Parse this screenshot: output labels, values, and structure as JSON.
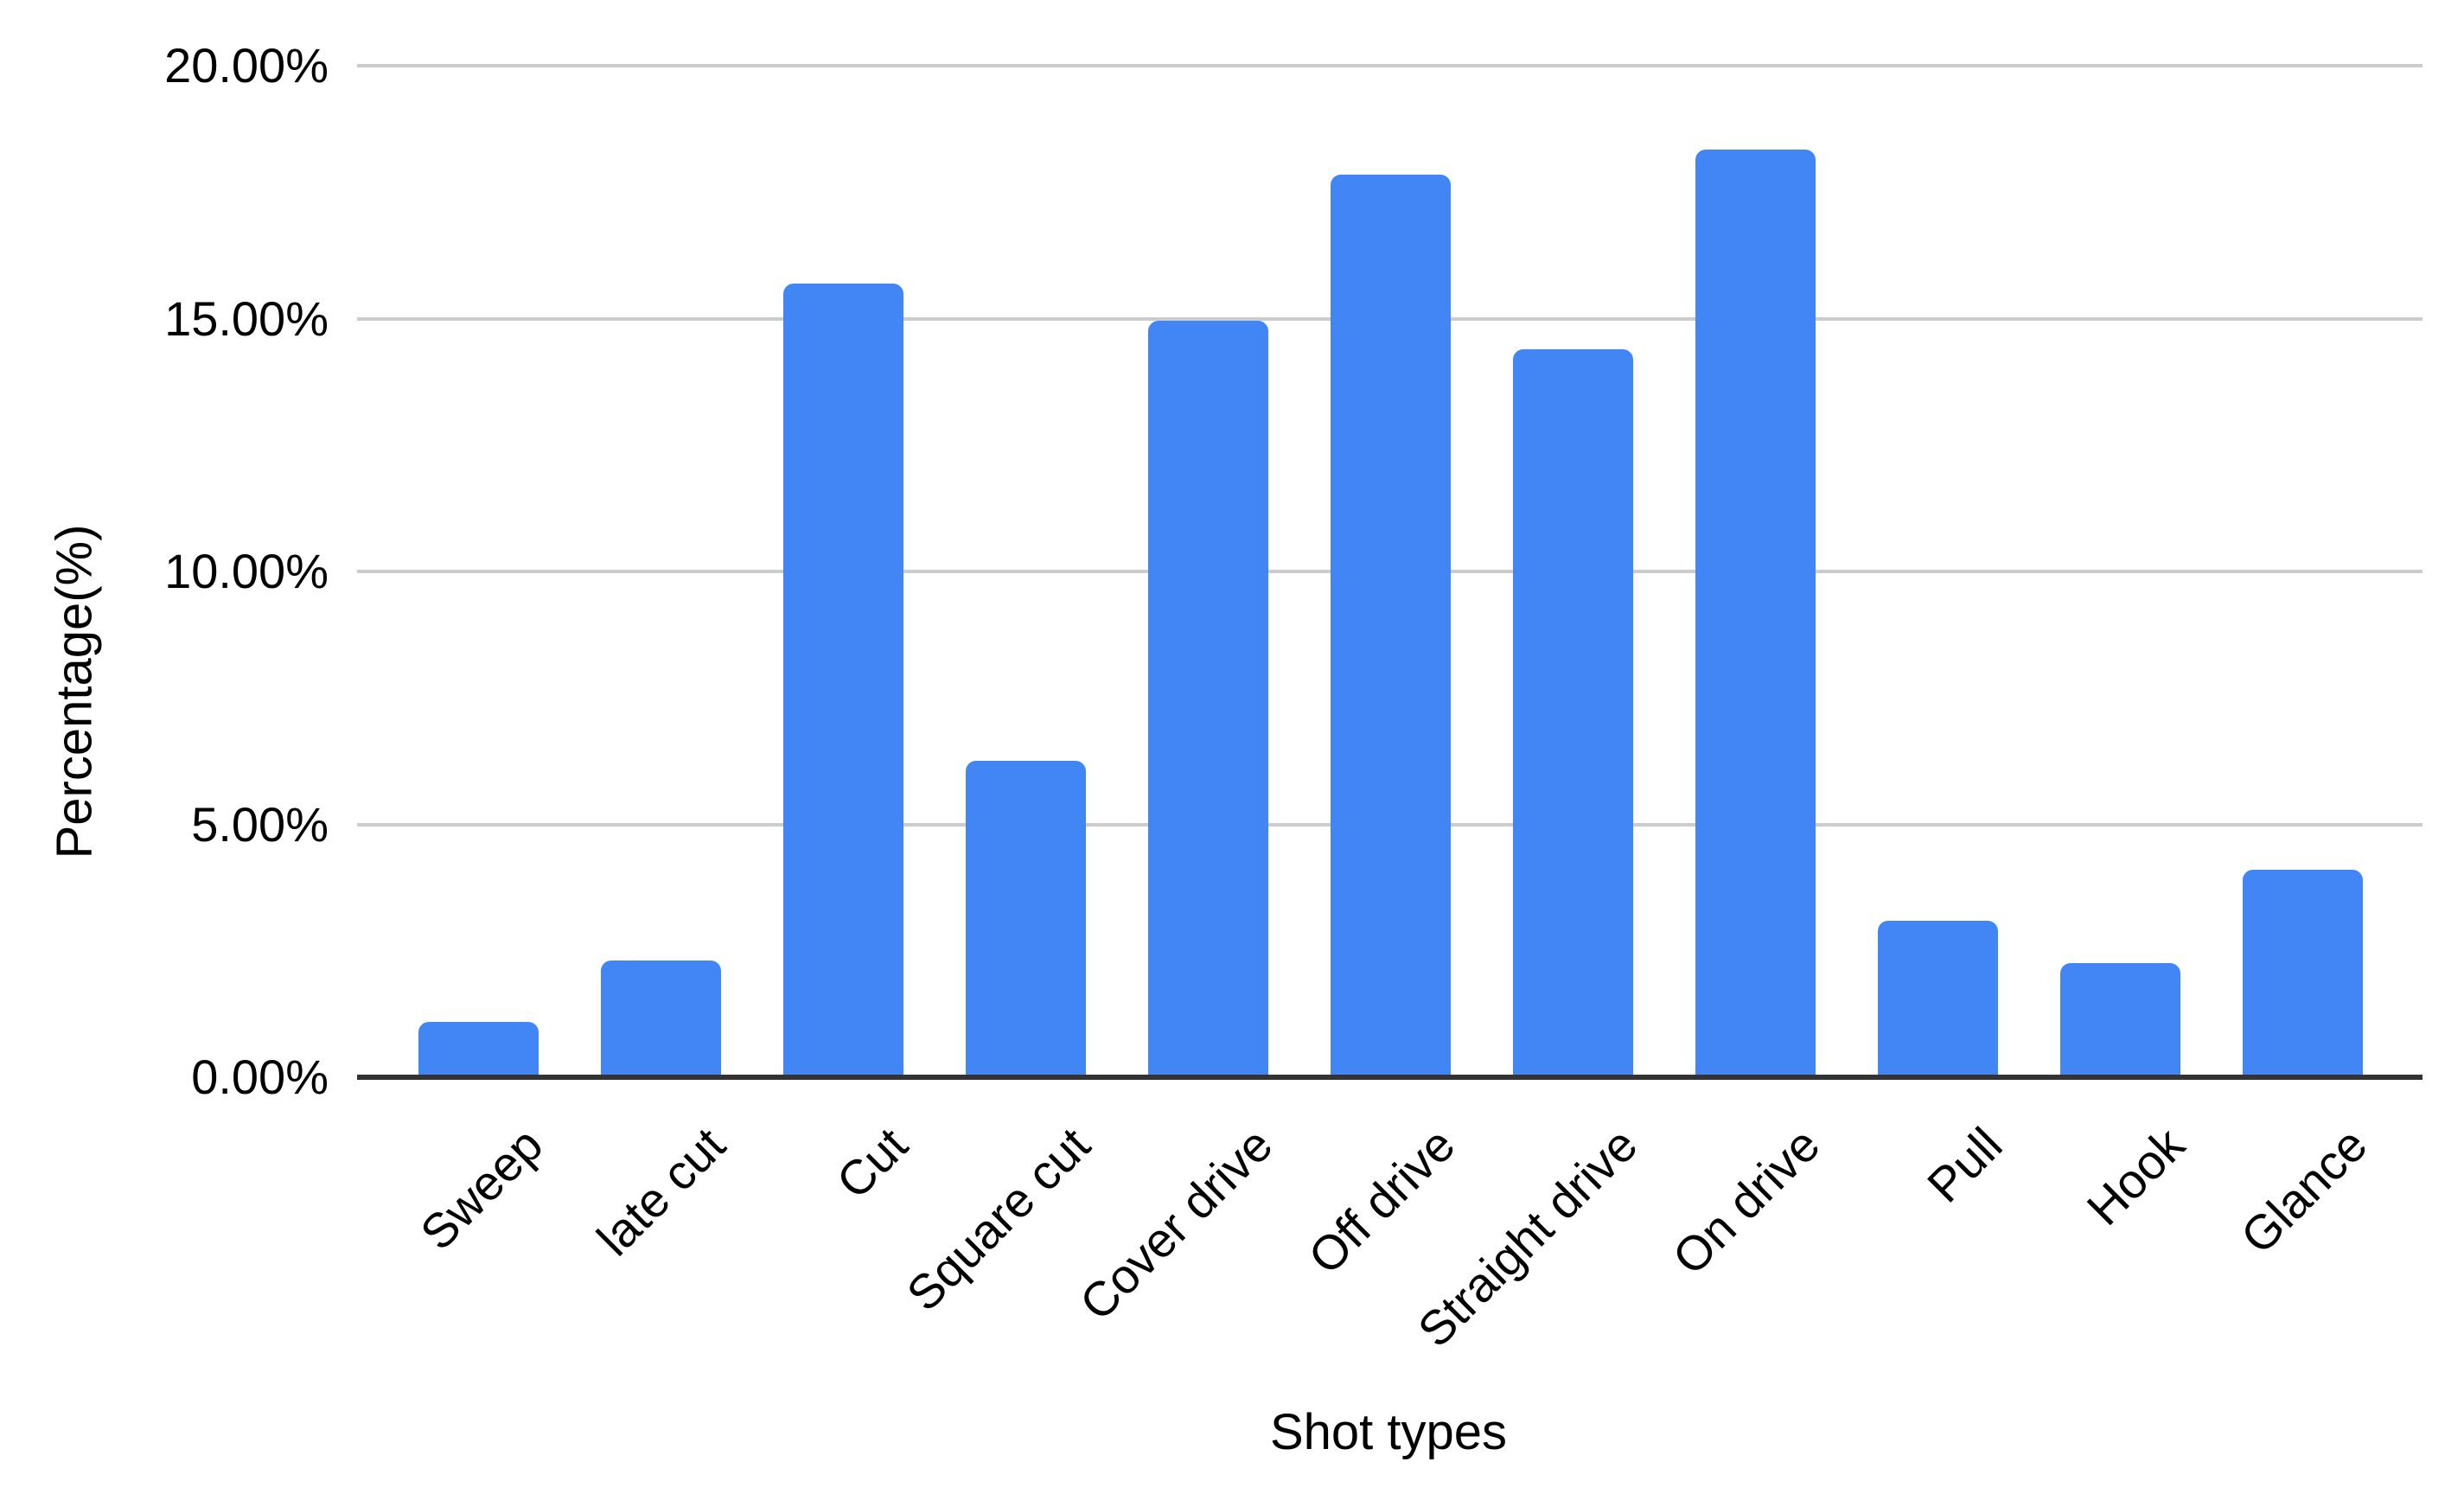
{
  "chart": {
    "background_color": "#ffffff",
    "bar_color": "#4285f4",
    "gridline_color": "#cccccc",
    "axis_line_color": "#333333",
    "text_color": "#000000",
    "y_axis_title": "Percentage(%)",
    "x_axis_title": "Shot types",
    "y_tick_labels": [
      "20.00%",
      "15.00%",
      "10.00%",
      "5.00%",
      "0.00%"
    ]
  },
  "chart_data": {
    "type": "bar",
    "title": "",
    "xlabel": "Shot types",
    "ylabel": "Percentage(%)",
    "categories": [
      "Sweep",
      "late cut",
      "Cut",
      "Square cut",
      "Cover drive",
      "Off drive",
      "Straight drive",
      "On drive",
      "Pull",
      "Hook",
      "Glance"
    ],
    "values": [
      1.1,
      2.3,
      15.7,
      6.25,
      14.95,
      17.85,
      14.4,
      18.35,
      3.1,
      2.25,
      4.1
    ],
    "value_unit": "%",
    "ylim": [
      0,
      20
    ],
    "y_tick_step": 5,
    "y_tick_format": "0.00%",
    "grid": true,
    "legend_position": "none",
    "bar_corner_radius_px": 12
  }
}
